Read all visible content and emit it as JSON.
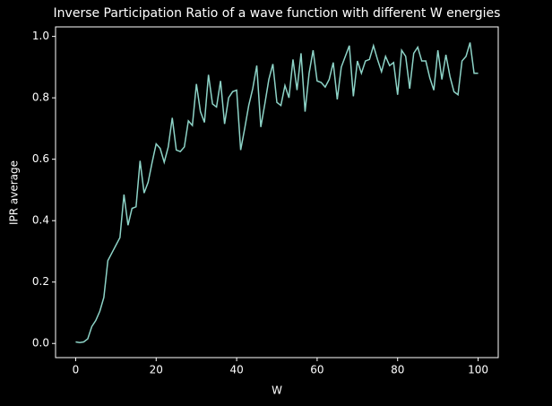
{
  "chart_data": {
    "type": "line",
    "title": "Inverse Participation Ratio of a wave function with different W energies",
    "xlabel": "W",
    "ylabel": "IPR average",
    "x": [
      0,
      1,
      2,
      3,
      4,
      5,
      6,
      7,
      8,
      9,
      10,
      11,
      12,
      13,
      14,
      15,
      16,
      17,
      18,
      19,
      20,
      21,
      22,
      23,
      24,
      25,
      26,
      27,
      28,
      29,
      30,
      31,
      32,
      33,
      34,
      35,
      36,
      37,
      38,
      39,
      40,
      41,
      42,
      43,
      44,
      45,
      46,
      47,
      48,
      49,
      50,
      51,
      52,
      53,
      54,
      55,
      56,
      57,
      58,
      59,
      60,
      61,
      62,
      63,
      64,
      65,
      66,
      67,
      68,
      69,
      70,
      71,
      72,
      73,
      74,
      75,
      76,
      77,
      78,
      79,
      80,
      81,
      82,
      83,
      84,
      85,
      86,
      87,
      88,
      89,
      90,
      91,
      92,
      93,
      94,
      95,
      96,
      97,
      98,
      99,
      100
    ],
    "series": [
      {
        "color": "#8dd3c7",
        "values": [
          0.005,
          0.003,
          0.005,
          0.015,
          0.055,
          0.075,
          0.105,
          0.15,
          0.27,
          0.295,
          0.32,
          0.345,
          0.485,
          0.385,
          0.44,
          0.445,
          0.595,
          0.49,
          0.525,
          0.59,
          0.65,
          0.635,
          0.59,
          0.64,
          0.735,
          0.63,
          0.625,
          0.64,
          0.725,
          0.71,
          0.845,
          0.755,
          0.72,
          0.875,
          0.78,
          0.77,
          0.855,
          0.715,
          0.8,
          0.82,
          0.825,
          0.63,
          0.7,
          0.775,
          0.83,
          0.905,
          0.705,
          0.78,
          0.86,
          0.91,
          0.785,
          0.775,
          0.84,
          0.8,
          0.925,
          0.825,
          0.945,
          0.755,
          0.88,
          0.955,
          0.855,
          0.85,
          0.835,
          0.86,
          0.915,
          0.795,
          0.9,
          0.935,
          0.97,
          0.805,
          0.92,
          0.88,
          0.92,
          0.925,
          0.97,
          0.925,
          0.885,
          0.935,
          0.905,
          0.915,
          0.81,
          0.955,
          0.935,
          0.83,
          0.945,
          0.965,
          0.92,
          0.92,
          0.865,
          0.825,
          0.955,
          0.86,
          0.94,
          0.87,
          0.82,
          0.81,
          0.92,
          0.935,
          0.98,
          0.88,
          0.88
        ]
      }
    ],
    "xlim": [
      -5,
      105
    ],
    "ylim": [
      -0.046,
      1.031
    ],
    "xticks": [
      0,
      20,
      40,
      60,
      80,
      100
    ],
    "yticks": [
      {
        "value": 0,
        "label": "0.0"
      },
      0.2,
      0.4,
      0.6,
      0.8,
      {
        "value": 1,
        "label": "1.0"
      }
    ]
  }
}
